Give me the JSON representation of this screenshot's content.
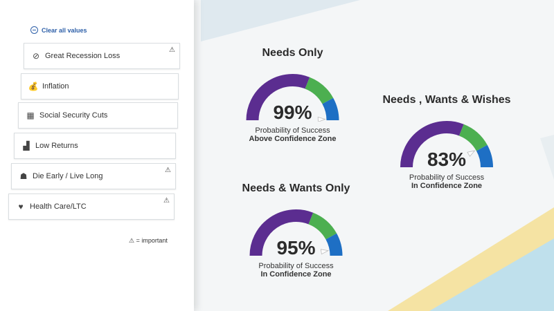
{
  "clear_all_label": "Clear all values",
  "risks": [
    {
      "label": "Great Recession Loss",
      "icon": "recession-icon",
      "important": true
    },
    {
      "label": "Inflation",
      "icon": "inflation-icon",
      "important": false
    },
    {
      "label": "Social Security Cuts",
      "icon": "social-security-icon",
      "important": false
    },
    {
      "label": "Low Returns",
      "icon": "low-returns-icon",
      "important": false
    },
    {
      "label": "Die Early / Live Long",
      "icon": "tombstone-icon",
      "important": true
    },
    {
      "label": "Health Care/LTC",
      "icon": "health-care-icon",
      "important": true
    }
  ],
  "legend_text": "= important",
  "colors": {
    "purple": "#5b2d90",
    "green": "#4caf50",
    "blue": "#1e6fc4"
  },
  "gauges": [
    {
      "title": "Needs Only",
      "value": "99%",
      "caption": "Probability of Success",
      "zone": "Above Confidence Zone",
      "fill": 0.99
    },
    {
      "title": "Needs , Wants & Wishes",
      "value": "83%",
      "caption": "Probability of Success",
      "zone": "In Confidence Zone",
      "fill": 0.83
    },
    {
      "title": "Needs & Wants Only",
      "value": "95%",
      "caption": "Probability of Success",
      "zone": "In Confidence Zone",
      "fill": 0.95
    }
  ]
}
